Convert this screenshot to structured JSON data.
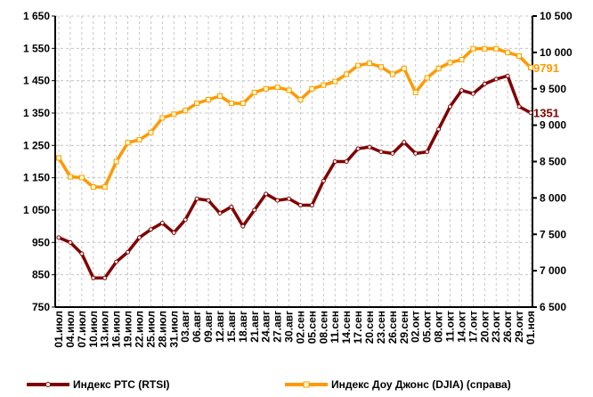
{
  "chart_data": {
    "type": "line",
    "categories": [
      "01.июл",
      "04.июл",
      "07.июл",
      "10.июл",
      "13.июл",
      "16.июл",
      "19.июл",
      "22.июл",
      "25.июл",
      "28.июл",
      "31.июл",
      "03.авг",
      "06.авг",
      "09.авг",
      "12.авг",
      "15.авг",
      "18.авг",
      "21.авг",
      "24.авг",
      "27.авг",
      "30.авг",
      "02.сен",
      "05.сен",
      "08.сен",
      "11.сен",
      "14.сен",
      "17.сен",
      "20.сен",
      "23.сен",
      "26.сен",
      "29.сен",
      "02.окт",
      "05.окт",
      "08.окт",
      "11.окт",
      "14.окт",
      "17.окт",
      "20.окт",
      "23.окт",
      "26.окт",
      "29.окт",
      "01.ноя"
    ],
    "series": [
      {
        "name": "Индекс РТС (RTSI)",
        "color": "#800000",
        "values": [
          965,
          950,
          915,
          840,
          840,
          890,
          920,
          965,
          990,
          1010,
          980,
          1020,
          1085,
          1080,
          1040,
          1060,
          1000,
          1050,
          1100,
          1080,
          1085,
          1065,
          1065,
          1140,
          1200,
          1200,
          1240,
          1245,
          1230,
          1225,
          1260,
          1225,
          1230,
          1300,
          1370,
          1420,
          1410,
          1440,
          1455,
          1465,
          1370,
          1351
        ]
      },
      {
        "name": "Индекс Доу Джонс (DJIA) (справа)",
        "color": "#ff9900",
        "axis": "y2",
        "values": [
          8550,
          8290,
          8280,
          8150,
          8150,
          8500,
          8760,
          8800,
          8900,
          9100,
          9150,
          9200,
          9300,
          9350,
          9400,
          9300,
          9300,
          9450,
          9500,
          9520,
          9480,
          9350,
          9500,
          9550,
          9600,
          9700,
          9820,
          9850,
          9800,
          9700,
          9780,
          9450,
          9650,
          9780,
          9860,
          9900,
          10050,
          10050,
          10050,
          10000,
          9950,
          9791
        ]
      }
    ],
    "ylim": [
      750,
      1650
    ],
    "yticks": [
      750,
      850,
      950,
      {
        "value": 1050,
        "label": "1 050"
      },
      {
        "value": 1150,
        "label": "1 150"
      },
      {
        "value": 1250,
        "label": "1 250"
      },
      {
        "value": 1350,
        "label": "1 350"
      },
      {
        "value": 1450,
        "label": "1 450"
      },
      {
        "value": 1550,
        "label": "1 550"
      },
      {
        "value": 1650,
        "label": "1 650"
      }
    ],
    "y2lim": [
      6500,
      10500
    ],
    "y2ticks": [
      {
        "value": 6500,
        "label": "6 500"
      },
      {
        "value": 7000,
        "label": "7 000"
      },
      {
        "value": 7500,
        "label": "7 500"
      },
      {
        "value": 8000,
        "label": "8 000"
      },
      {
        "value": 8500,
        "label": "8 500"
      },
      {
        "value": 9000,
        "label": "9 000"
      },
      {
        "value": 9500,
        "label": "9 500"
      },
      {
        "value": 10000,
        "label": "10 000"
      },
      {
        "value": 10500,
        "label": "10 500"
      }
    ],
    "grid": true
  }
}
